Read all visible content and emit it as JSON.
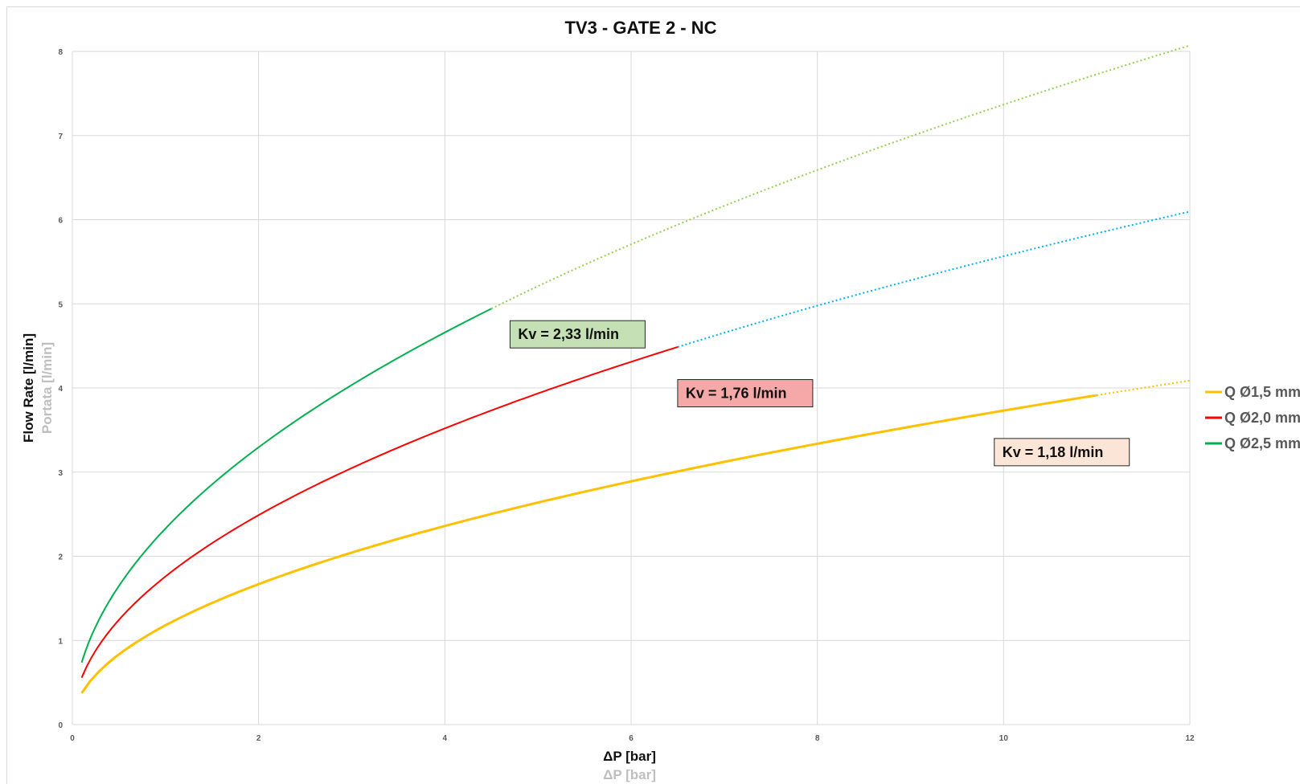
{
  "chart_data": {
    "type": "line",
    "title": "TV3 - GATE 2 - NC",
    "xlabel": "ΔP [bar]",
    "xlabel_secondary": "ΔP [bar]",
    "ylabel": "Flow Rate [l/min]",
    "ylabel_secondary": "Portata [l/min]",
    "xlim": [
      0,
      12
    ],
    "ylim": [
      0,
      8
    ],
    "x_ticks": [
      0,
      2,
      4,
      6,
      8,
      10,
      12
    ],
    "y_ticks": [
      0,
      1,
      2,
      3,
      4,
      5,
      6,
      7,
      8
    ],
    "grid": true,
    "legend_position": "right",
    "series": [
      {
        "name": "Q Ø1,5 mm",
        "color": "#ffc000",
        "kv": 1.18,
        "solid_x_range": [
          0.1,
          11
        ],
        "dotted_x_range": [
          11,
          12
        ],
        "dotted_color": "#ffc000",
        "sample_points": [
          [
            0.1,
            0.37
          ],
          [
            2,
            1.67
          ],
          [
            4,
            2.36
          ],
          [
            6,
            2.89
          ],
          [
            8,
            3.34
          ],
          [
            10,
            3.73
          ],
          [
            11,
            3.91
          ],
          [
            12,
            4.09
          ]
        ]
      },
      {
        "name": "Q Ø2,0 mm",
        "color": "#ff0000",
        "kv": 1.76,
        "solid_x_range": [
          0.1,
          6.5
        ],
        "dotted_x_range": [
          6.5,
          12
        ],
        "dotted_color": "#00b0f0",
        "sample_points": [
          [
            0.1,
            0.56
          ],
          [
            2,
            2.49
          ],
          [
            4,
            3.52
          ],
          [
            6,
            4.31
          ],
          [
            6.5,
            4.49
          ],
          [
            8,
            4.98
          ],
          [
            10,
            5.57
          ],
          [
            12,
            6.1
          ]
        ]
      },
      {
        "name": "Q Ø2,5 mm",
        "color": "#00b050",
        "kv": 2.33,
        "solid_x_range": [
          0.1,
          4.5
        ],
        "dotted_x_range": [
          4.5,
          12
        ],
        "dotted_color": "#92d050",
        "sample_points": [
          [
            0.1,
            0.74
          ],
          [
            2,
            3.3
          ],
          [
            4,
            4.66
          ],
          [
            4.5,
            4.94
          ],
          [
            6,
            5.71
          ],
          [
            8,
            6.59
          ],
          [
            10,
            7.37
          ],
          [
            12,
            8.07
          ]
        ]
      }
    ],
    "annotations": [
      {
        "text": "Kv = 2,33 l/min",
        "series": "Q Ø2,5 mm",
        "background": "#c5e0b4",
        "anchor_x": 4.7,
        "anchor_y": 4.8
      },
      {
        "text": "Kv = 1,76 l/min",
        "series": "Q Ø2,0 mm",
        "background": "#f4a8a8",
        "anchor_x": 6.5,
        "anchor_y": 4.1
      },
      {
        "text": "Kv = 1,18 l/min",
        "series": "Q Ø1,5 mm",
        "background": "#fbe5d6",
        "anchor_x": 9.9,
        "anchor_y": 3.4
      }
    ]
  }
}
